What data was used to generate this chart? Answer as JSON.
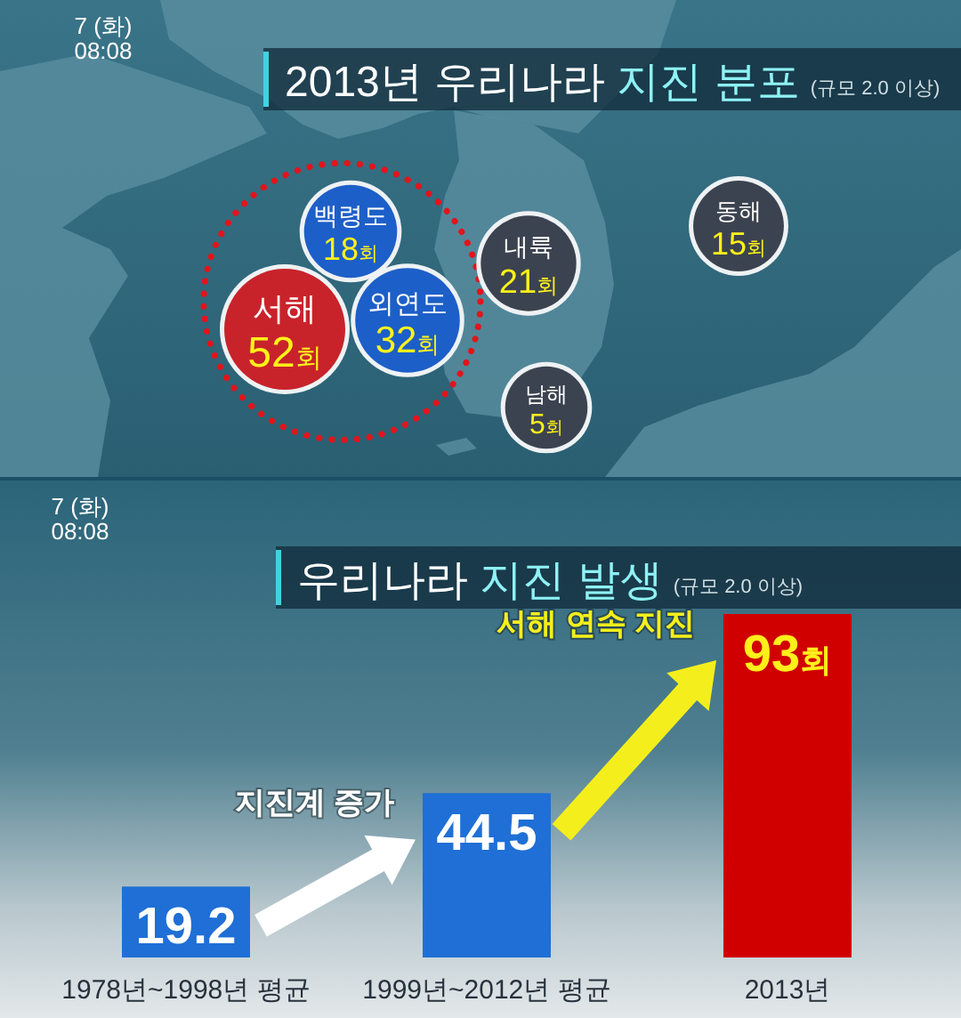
{
  "chart_data": [
    {
      "type": "other",
      "title": "2013년 우리나라 지진 분포",
      "subtitle": "(규모 2.0 이상)",
      "annotations": [
        "7 (화)",
        "08:08"
      ],
      "categories": [
        "백령도",
        "서해",
        "외연도",
        "내륙",
        "동해",
        "남해"
      ],
      "values": [
        18,
        52,
        32,
        21,
        15,
        5
      ],
      "value_labels": [
        "18회",
        "52회",
        "32회",
        "21회",
        "15회",
        "5회"
      ],
      "colors": [
        "#1d5fc8",
        "#c8232b",
        "#1d5fc8",
        "#3c4350",
        "#3c4350",
        "#3c4350"
      ]
    },
    {
      "type": "bar",
      "title": "우리나라 지진 발생",
      "subtitle": "(규모 2.0 이상)",
      "annotations": [
        "7 (화)",
        "08:08",
        "지진계 증가",
        "서해 연속 지진"
      ],
      "categories": [
        "1978년~1998년 평균",
        "1999년~2012년 평균",
        "2013년"
      ],
      "values": [
        19.2,
        44.5,
        93
      ],
      "value_labels": [
        "19.2",
        "44.5",
        "93회"
      ],
      "colors": [
        "#1f6fd6",
        "#1f6fd6",
        "#d00000"
      ]
    }
  ]
}
